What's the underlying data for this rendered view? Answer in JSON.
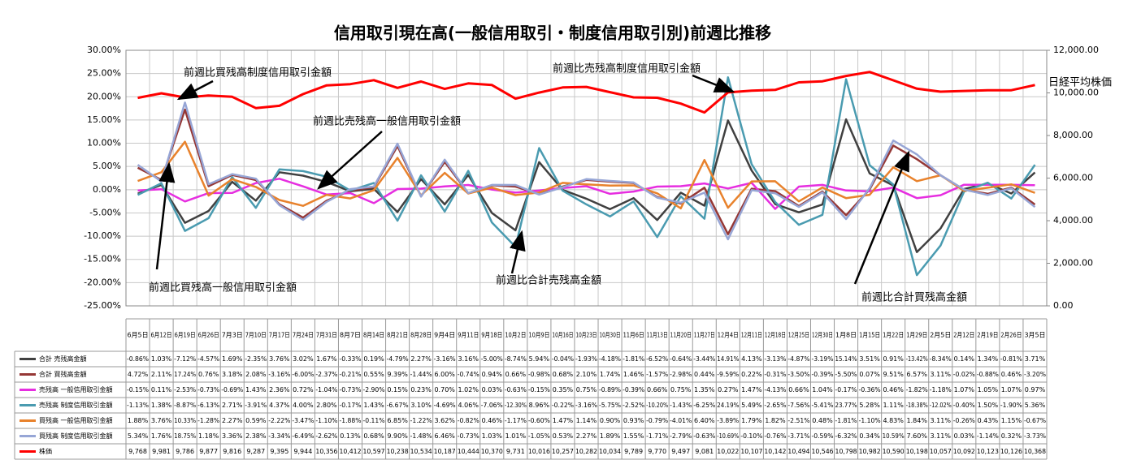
{
  "chart_data": {
    "type": "line",
    "title": "信用取引現在高(一般信用取引・制度信用取引別)前週比推移",
    "categories": [
      "6月5日",
      "6月12日",
      "6月19日",
      "6月26日",
      "7月3日",
      "7月10日",
      "7月17日",
      "7月24日",
      "7月31日",
      "8月7日",
      "8月14日",
      "8月21日",
      "8月28日",
      "9月4日",
      "9月11日",
      "9月18日",
      "10月2日",
      "10月9日",
      "10月16日",
      "10月23日",
      "10月30日",
      "11月6日",
      "11月13日",
      "11月20日",
      "11月27日",
      "12月4日",
      "12月11日",
      "12月18日",
      "12月25日",
      "12月30日",
      "1月8日",
      "1月15日",
      "1月22日",
      "1月29日",
      "2月5日",
      "2月12日",
      "2月19日",
      "2月26日",
      "3月5日"
    ],
    "ylim": [
      -25,
      30
    ],
    "yticks": [
      {
        "value": 30,
        "label": "30.00%"
      },
      {
        "value": 25,
        "label": "25.00%"
      },
      {
        "value": 20,
        "label": "20.00%"
      },
      {
        "value": 15,
        "label": "15.00%"
      },
      {
        "value": 10,
        "label": "10.00%"
      },
      {
        "value": 5,
        "label": "5.00%"
      },
      {
        "value": 0,
        "label": "0.00%"
      },
      {
        "value": -5,
        "label": "-5.00%"
      },
      {
        "value": -10,
        "label": "-10.00%"
      },
      {
        "value": -15,
        "label": "-15.00%"
      },
      {
        "value": -20,
        "label": "-20.00%"
      },
      {
        "value": -25,
        "label": "-25.00%"
      }
    ],
    "y2lim": [
      0,
      12000
    ],
    "y2ticks": [
      {
        "value": 0,
        "label": "0.00"
      },
      {
        "value": 2000,
        "label": "2,000.00"
      },
      {
        "value": 4000,
        "label": "4,000.00"
      },
      {
        "value": 6000,
        "label": "6,000.00"
      },
      {
        "value": 8000,
        "label": "8,000.00"
      },
      {
        "value": 10000,
        "label": "10,000.00"
      },
      {
        "value": 12000,
        "label": "12,000.00"
      }
    ],
    "grid": true,
    "annotations": [
      "前週比買残高制度信用取引金額",
      "前週比売残高一般信用取引金額",
      "前週比売残高制度信用取引金額",
      "前週比買残高一般信用取引金額",
      "前週比合計売残高金額",
      "前週比合計買残高金額",
      "日経平均株価"
    ],
    "series": [
      {
        "name": "合計 売残高金額",
        "color": "#404040",
        "values": [
          -0.86,
          1.03,
          -7.12,
          -4.57,
          1.69,
          -2.35,
          3.76,
          3.02,
          1.67,
          -0.33,
          0.19,
          -4.79,
          2.27,
          -3.16,
          3.16,
          -5.0,
          -8.74,
          5.94,
          -0.04,
          -1.93,
          -4.18,
          -1.81,
          -6.52,
          -0.64,
          -3.44,
          14.91,
          4.13,
          -3.13,
          -4.87,
          -3.19,
          15.14,
          3.51,
          0.91,
          -13.42,
          -8.34,
          0.14,
          1.34,
          -0.81,
          3.71
        ],
        "value_labels": [
          "-0.86%",
          "1.03%",
          "-7.12%",
          "-4.57%",
          "1.69%",
          "-2.35%",
          "3.76%",
          "3.02%",
          "1.67%",
          "-0.33%",
          "0.19%",
          "-4.79%",
          "2.27%",
          "-3.16%",
          "3.16%",
          "-5.00%",
          "-8.74%",
          "5.94%",
          "-0.04%",
          "-1.93%",
          "-4.18%",
          "-1.81%",
          "-6.52%",
          "-0.64%",
          "-3.44%",
          "14.91%",
          "4.13%",
          "-3.13%",
          "-4.87%",
          "-3.19%",
          "15.14%",
          "3.51%",
          "0.91%",
          "-13.42%",
          "-8.34%",
          "0.14%",
          "1.34%",
          "-0.81%",
          "3.71%"
        ]
      },
      {
        "name": "合計 買残高金額",
        "color": "#953735",
        "values": [
          4.72,
          2.11,
          17.24,
          0.76,
          3.18,
          2.08,
          -3.16,
          -6.0,
          -2.37,
          -0.21,
          0.55,
          9.39,
          -1.44,
          6.0,
          -0.74,
          0.94,
          0.66,
          -0.98,
          0.68,
          2.1,
          1.74,
          1.46,
          -1.57,
          -2.98,
          0.44,
          -9.59,
          0.22,
          -0.31,
          -3.5,
          -0.39,
          -5.5,
          0.07,
          9.51,
          6.57,
          3.11,
          -0.02,
          -0.88,
          0.46,
          -3.2
        ],
        "value_labels": [
          "4.72%",
          "2.11%",
          "17.24%",
          "0.76%",
          "3.18%",
          "2.08%",
          "-3.16%",
          "-6.00%",
          "-2.37%",
          "-0.21%",
          "0.55%",
          "9.39%",
          "-1.44%",
          "6.00%",
          "-0.74%",
          "0.94%",
          "0.66%",
          "-0.98%",
          "0.68%",
          "2.10%",
          "1.74%",
          "1.46%",
          "-1.57%",
          "-2.98%",
          "0.44%",
          "-9.59%",
          "0.22%",
          "-0.31%",
          "-3.50%",
          "-0.39%",
          "-5.50%",
          "0.07%",
          "9.51%",
          "6.57%",
          "3.11%",
          "-0.02%",
          "-0.88%",
          "0.46%",
          "-3.20%"
        ]
      },
      {
        "name": "売残高 一般信用取引金額",
        "color": "#e62ee0",
        "values": [
          -0.15,
          0.11,
          -2.53,
          -0.73,
          -0.69,
          1.43,
          2.36,
          0.72,
          -1.04,
          -0.73,
          -2.9,
          0.15,
          0.23,
          0.7,
          1.02,
          0.03,
          -0.63,
          -0.15,
          0.35,
          0.75,
          -0.89,
          -0.39,
          0.66,
          0.75,
          1.35,
          0.27,
          1.47,
          -4.13,
          0.66,
          1.04,
          -0.17,
          -0.36,
          0.46,
          -1.82,
          -1.18,
          1.07,
          1.05,
          1.07,
          0.97
        ],
        "value_labels": [
          "-0.15%",
          "0.11%",
          "-2.53%",
          "-0.73%",
          "-0.69%",
          "1.43%",
          "2.36%",
          "0.72%",
          "-1.04%",
          "-0.73%",
          "-2.90%",
          "0.15%",
          "0.23%",
          "0.70%",
          "1.02%",
          "0.03%",
          "-0.63%",
          "-0.15%",
          "0.35%",
          "0.75%",
          "-0.89%",
          "-0.39%",
          "0.66%",
          "0.75%",
          "1.35%",
          "0.27%",
          "1.47%",
          "-4.13%",
          "0.66%",
          "1.04%",
          "-0.17%",
          "-0.36%",
          "0.46%",
          "-1.82%",
          "-1.18%",
          "1.07%",
          "1.05%",
          "1.07%",
          "0.97%"
        ]
      },
      {
        "name": "売残高 制度信用取引金額",
        "color": "#4a9bb0",
        "values": [
          -1.13,
          1.38,
          -8.87,
          -6.13,
          2.71,
          -3.91,
          4.37,
          4.0,
          2.8,
          -0.17,
          1.43,
          -6.67,
          3.1,
          -4.69,
          4.06,
          -7.06,
          -12.3,
          8.96,
          -0.22,
          -3.16,
          -5.75,
          -2.52,
          -10.2,
          -1.43,
          -6.25,
          24.19,
          5.49,
          -2.65,
          -7.56,
          -5.41,
          23.77,
          5.28,
          1.11,
          -18.38,
          -12.02,
          -0.4,
          1.5,
          -1.9,
          5.36
        ],
        "value_labels": [
          "-1.13%",
          "1.38%",
          "-8.87%",
          "-6.13%",
          "2.71%",
          "-3.91%",
          "4.37%",
          "4.00%",
          "2.80%",
          "-0.17%",
          "1.43%",
          "-6.67%",
          "3.10%",
          "-4.69%",
          "4.06%",
          "-7.06%",
          "-12.30%",
          "8.96%",
          "-0.22%",
          "-3.16%",
          "-5.75%",
          "-2.52%",
          "-10.20%",
          "-1.43%",
          "-6.25%",
          "24.19%",
          "5.49%",
          "-2.65%",
          "-7.56%",
          "-5.41%",
          "23.77%",
          "5.28%",
          "1.11%",
          "-18.38%",
          "-12.02%",
          "-0.40%",
          "1.50%",
          "-1.90%",
          "5.36%"
        ]
      },
      {
        "name": "買残高 一般信用取引金額",
        "color": "#e8822c",
        "values": [
          1.88,
          3.76,
          10.33,
          -1.28,
          2.27,
          0.59,
          -2.22,
          -3.47,
          -1.1,
          -1.88,
          -0.11,
          6.85,
          -1.22,
          3.62,
          -0.82,
          0.46,
          -1.17,
          -0.6,
          1.47,
          1.14,
          0.9,
          0.93,
          -0.79,
          -4.01,
          6.4,
          -3.89,
          1.79,
          1.82,
          -2.51,
          0.48,
          -1.81,
          -1.1,
          4.83,
          1.84,
          3.11,
          -0.26,
          0.43,
          1.15,
          -0.67
        ],
        "value_labels": [
          "1.88%",
          "3.76%",
          "10.33%",
          "-1.28%",
          "2.27%",
          "0.59%",
          "-2.22%",
          "-3.47%",
          "-1.10%",
          "-1.88%",
          "-0.11%",
          "6.85%",
          "-1.22%",
          "3.62%",
          "-0.82%",
          "0.46%",
          "-1.17%",
          "-0.60%",
          "1.47%",
          "1.14%",
          "0.90%",
          "0.93%",
          "-0.79%",
          "-4.01%",
          "6.40%",
          "-3.89%",
          "1.79%",
          "1.82%",
          "-2.51%",
          "0.48%",
          "-1.81%",
          "-1.10%",
          "4.83%",
          "1.84%",
          "3.11%",
          "-0.26%",
          "0.43%",
          "1.15%",
          "-0.67%"
        ]
      },
      {
        "name": "買残高 制度信用取引金額",
        "color": "#97a6d6",
        "values": [
          5.34,
          1.76,
          18.75,
          1.18,
          3.36,
          2.38,
          -3.34,
          -6.49,
          -2.62,
          0.13,
          0.68,
          9.9,
          -1.48,
          6.46,
          -0.73,
          1.03,
          1.01,
          -1.05,
          0.53,
          2.27,
          1.89,
          1.55,
          -1.71,
          -2.79,
          -0.63,
          -10.69,
          -0.1,
          -0.76,
          -3.71,
          -0.59,
          -6.32,
          0.34,
          10.59,
          7.6,
          3.11,
          0.03,
          -1.14,
          0.32,
          -3.73
        ],
        "value_labels": [
          "5.34%",
          "1.76%",
          "18.75%",
          "1.18%",
          "3.36%",
          "2.38%",
          "-3.34%",
          "-6.49%",
          "-2.62%",
          "0.13%",
          "0.68%",
          "9.90%",
          "-1.48%",
          "6.46%",
          "-0.73%",
          "1.03%",
          "1.01%",
          "-1.05%",
          "0.53%",
          "2.27%",
          "1.89%",
          "1.55%",
          "-1.71%",
          "-2.79%",
          "-0.63%",
          "-10.69%",
          "-0.10%",
          "-0.76%",
          "-3.71%",
          "-0.59%",
          "-6.32%",
          "0.34%",
          "10.59%",
          "7.60%",
          "3.11%",
          "0.03%",
          "-1.14%",
          "0.32%",
          "-3.73%"
        ]
      },
      {
        "name": "株価",
        "color": "#ff0000",
        "axis": "y2",
        "values": [
          9768,
          9981,
          9786,
          9877,
          9816,
          9287,
          9395,
          9944,
          10356,
          10412,
          10597,
          10238,
          10534,
          10187,
          10444,
          10370,
          9731,
          10016,
          10257,
          10282,
          10034,
          9789,
          9770,
          9497,
          9081,
          10022,
          10107,
          10142,
          10494,
          10546,
          10798,
          10982,
          10590,
          10198,
          10057,
          10092,
          10123,
          10126,
          10368
        ],
        "value_labels": [
          "9,768",
          "9,981",
          "9,786",
          "9,877",
          "9,816",
          "9,287",
          "9,395",
          "9,944",
          "10,356",
          "10,412",
          "10,597",
          "10,238",
          "10,534",
          "10,187",
          "10,444",
          "10,370",
          "9,731",
          "10,016",
          "10,257",
          "10,282",
          "10,034",
          "9,789",
          "9,770",
          "9,497",
          "9,081",
          "10,022",
          "10,107",
          "10,142",
          "10,494",
          "10,546",
          "10,798",
          "10,982",
          "10,590",
          "10,198",
          "10,057",
          "10,092",
          "10,123",
          "10,126",
          "10,368"
        ]
      }
    ]
  }
}
